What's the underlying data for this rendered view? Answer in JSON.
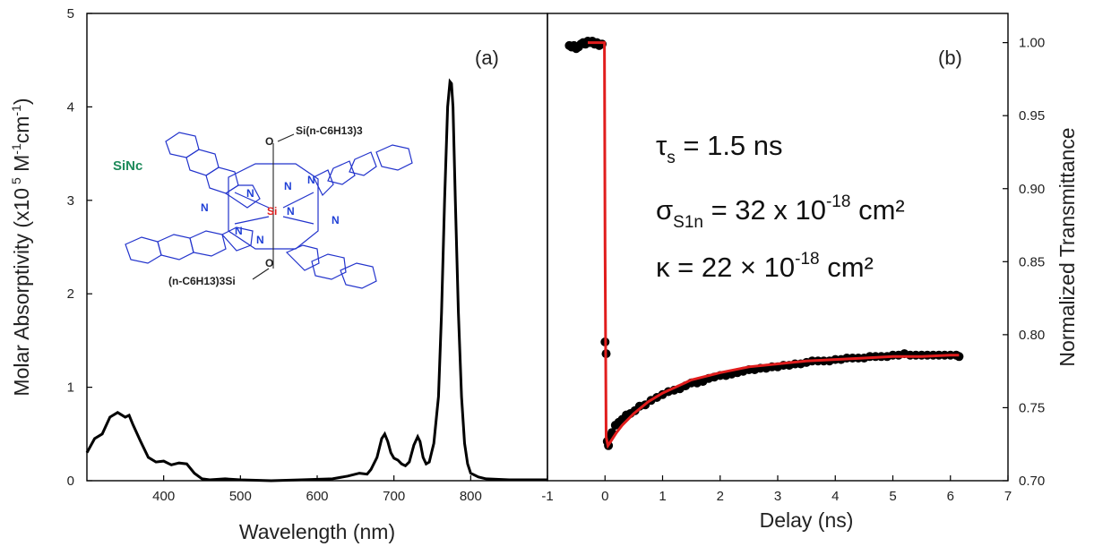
{
  "chart_data": [
    {
      "type": "line",
      "panel_label": "(a)",
      "xlabel": "Wavelength (nm)",
      "ylabel_main": "Molar Absorptivity (x10",
      "ylabel_sup5": "5",
      "ylabel_unit1": "M",
      "ylabel_sup1": "-1",
      "ylabel_unit2": "cm",
      "ylabel_sup2": "-1",
      "ylabel_close": ")",
      "xlim": [
        300,
        900
      ],
      "ylim": [
        0,
        5
      ],
      "xticks": [
        "400",
        "500",
        "600",
        "700",
        "800"
      ],
      "yticks": [
        "0",
        "1",
        "2",
        "3",
        "4",
        "5"
      ],
      "series": [
        {
          "color": "#000000",
          "x": [
            300,
            310,
            320,
            330,
            340,
            350,
            355,
            360,
            370,
            380,
            390,
            400,
            410,
            420,
            430,
            440,
            450,
            460,
            480,
            500,
            540,
            580,
            620,
            640,
            655,
            665,
            670,
            678,
            684,
            688,
            692,
            696,
            700,
            705,
            710,
            715,
            720,
            726,
            731,
            734,
            738,
            742,
            746,
            752,
            758,
            762,
            766,
            770,
            773,
            775,
            777,
            780,
            784,
            788,
            792,
            796,
            800,
            810,
            820,
            850,
            900
          ],
          "y": [
            0.3,
            0.45,
            0.5,
            0.68,
            0.73,
            0.68,
            0.7,
            0.6,
            0.42,
            0.25,
            0.2,
            0.21,
            0.17,
            0.19,
            0.18,
            0.08,
            0.02,
            0.01,
            0.02,
            0.01,
            0.0,
            0.01,
            0.02,
            0.05,
            0.08,
            0.07,
            0.12,
            0.25,
            0.45,
            0.5,
            0.42,
            0.3,
            0.24,
            0.22,
            0.18,
            0.16,
            0.2,
            0.38,
            0.47,
            0.42,
            0.25,
            0.18,
            0.2,
            0.4,
            0.9,
            1.8,
            3.0,
            4.0,
            4.27,
            4.25,
            4.0,
            3.0,
            1.8,
            0.9,
            0.4,
            0.18,
            0.08,
            0.04,
            0.02,
            0.01,
            0.01
          ]
        }
      ],
      "inset": {
        "name": "SiNc",
        "top_axial": "Si(n-C6H13)3",
        "bottom_axial": "(n-C6H13)3Si",
        "o_label": "O",
        "n_label": "N",
        "si_label": "Si"
      }
    },
    {
      "type": "scatter",
      "panel_label": "(b)",
      "xlabel": "Delay (ns)",
      "ylabel": "Normalized Transmittance",
      "xlim": [
        -1,
        7
      ],
      "ylim": [
        0.7,
        1.02
      ],
      "xticks": [
        "-1",
        "0",
        "1",
        "2",
        "3",
        "4",
        "5",
        "6",
        "7"
      ],
      "yticks": [
        "0.70",
        "0.75",
        "0.80",
        "0.85",
        "0.90",
        "0.95",
        "1.00"
      ],
      "annotations": [
        {
          "sym": "τ",
          "sub": "s",
          "text": " = 1.5 ns",
          "sup": "",
          "tail": ""
        },
        {
          "sym": "σ",
          "sub": "S1n",
          "text": " = 32 x 10",
          "sup": "-18",
          "tail": " cm²"
        },
        {
          "sym": "κ",
          "sub": "",
          "text": " = 22 × 10",
          "sup": "-18",
          "tail": " cm²"
        }
      ],
      "series": [
        {
          "type": "scatter",
          "color": "#000000",
          "x": [
            -0.62,
            -0.58,
            -0.54,
            -0.5,
            -0.46,
            -0.42,
            -0.38,
            -0.34,
            -0.3,
            -0.26,
            -0.22,
            -0.18,
            -0.14,
            -0.1,
            -0.05,
            0.0,
            0.02,
            0.04,
            0.06,
            0.08,
            0.12,
            0.18,
            0.24,
            0.3,
            0.37,
            0.44,
            0.52,
            0.6,
            0.7,
            0.8,
            0.9,
            1.0,
            1.1,
            1.2,
            1.3,
            1.4,
            1.5,
            1.6,
            1.7,
            1.8,
            1.9,
            2.0,
            2.1,
            2.2,
            2.3,
            2.4,
            2.5,
            2.6,
            2.7,
            2.8,
            2.9,
            3.0,
            3.1,
            3.2,
            3.3,
            3.4,
            3.5,
            3.6,
            3.7,
            3.8,
            3.9,
            4.0,
            4.1,
            4.2,
            4.3,
            4.4,
            4.5,
            4.6,
            4.7,
            4.8,
            4.9,
            5.0,
            5.1,
            5.2,
            5.3,
            5.4,
            5.5,
            5.6,
            5.7,
            5.8,
            5.9,
            6.0,
            6.1,
            6.15
          ],
          "y": [
            0.998,
            0.997,
            0.998,
            0.996,
            0.997,
            0.999,
            1.0,
            0.999,
            1.001,
            1.0,
            1.001,
            0.999,
            1.0,
            0.998,
            0.999,
            0.795,
            0.787,
            0.727,
            0.724,
            0.73,
            0.733,
            0.738,
            0.74,
            0.742,
            0.745,
            0.746,
            0.748,
            0.751,
            0.752,
            0.755,
            0.757,
            0.759,
            0.761,
            0.762,
            0.763,
            0.765,
            0.767,
            0.767,
            0.768,
            0.77,
            0.771,
            0.772,
            0.772,
            0.773,
            0.774,
            0.775,
            0.776,
            0.776,
            0.777,
            0.777,
            0.778,
            0.778,
            0.779,
            0.779,
            0.78,
            0.78,
            0.781,
            0.782,
            0.782,
            0.782,
            0.782,
            0.783,
            0.783,
            0.784,
            0.784,
            0.784,
            0.784,
            0.785,
            0.785,
            0.785,
            0.785,
            0.786,
            0.786,
            0.787,
            0.786,
            0.786,
            0.786,
            0.786,
            0.786,
            0.786,
            0.786,
            0.786,
            0.786,
            0.785
          ]
        },
        {
          "type": "line",
          "color": "#e11d1d",
          "x": [
            -0.3,
            -0.01,
            0.0,
            0.02,
            0.05,
            0.1,
            0.2,
            0.3,
            0.5,
            0.75,
            1.0,
            1.5,
            2.0,
            2.5,
            3.0,
            3.5,
            4.0,
            4.5,
            5.0,
            5.5,
            6.0,
            6.15
          ],
          "y": [
            1.0,
            1.0,
            0.86,
            0.73,
            0.724,
            0.727,
            0.733,
            0.738,
            0.746,
            0.754,
            0.76,
            0.769,
            0.774,
            0.778,
            0.78,
            0.782,
            0.783,
            0.784,
            0.785,
            0.785,
            0.786,
            0.786
          ]
        }
      ]
    }
  ]
}
